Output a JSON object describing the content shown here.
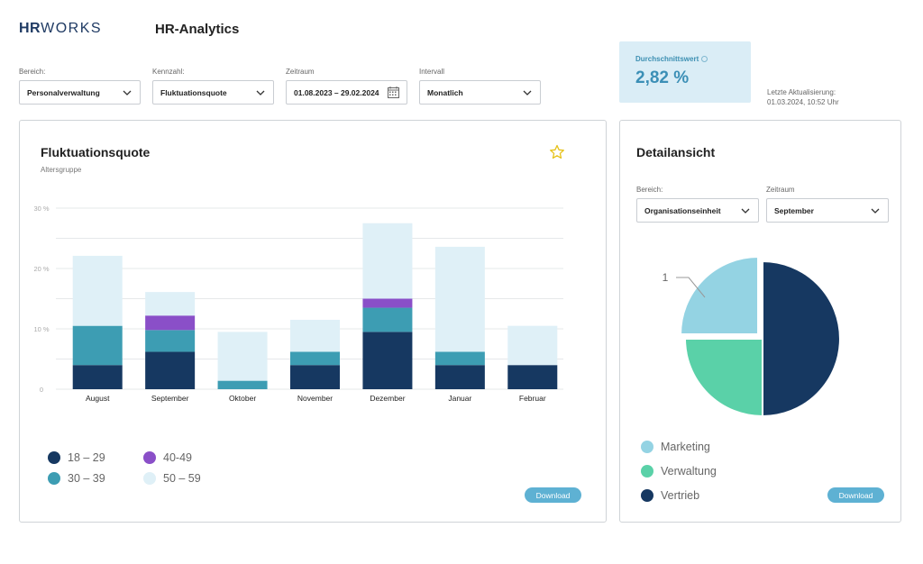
{
  "header": {
    "logo_hr": "HR",
    "logo_works": "WORKS",
    "title": "HR-Analytics"
  },
  "filters": {
    "bereich": {
      "label": "Bereich:",
      "value": "Personalverwaltung"
    },
    "kennzahl": {
      "label": "Kennzahl:",
      "value": "Fluktuationsquote"
    },
    "zeitraum": {
      "label": "Zeitraum",
      "value": "01.08.2023 – 29.02.2024"
    },
    "intervall": {
      "label": "Intervall",
      "value": "Monatlich"
    }
  },
  "kpi": {
    "label": "Durchschnittswert",
    "value": "2,82 %"
  },
  "updated": {
    "line1": "Letzte Aktualisierung:",
    "line2": "01.03.2024, 10:52 Uhr"
  },
  "main_card": {
    "title": "Fluktuationsquote",
    "subtitle": "Altersgruppe",
    "download": "Download"
  },
  "detail_card": {
    "title": "Detailansicht",
    "bereich": {
      "label": "Bereich:",
      "value": "Organisationseinheit"
    },
    "zeitraum": {
      "label": "Zeitraum",
      "value": "September"
    },
    "download": "Download"
  },
  "colors": {
    "c18_29": "#163861",
    "c30_39": "#3d9db3",
    "c40_49": "#8a4fc8",
    "c50_59": "#dff0f7",
    "marketing": "#94d3e3",
    "verwaltung": "#5ad1a8",
    "vertrieb": "#163861"
  },
  "chart_data": [
    {
      "type": "bar",
      "stacked": true,
      "categories": [
        "August",
        "September",
        "Oktober",
        "November",
        "Dezember",
        "Januar",
        "Februar"
      ],
      "series": [
        {
          "name": "18 – 29",
          "values": [
            4,
            6.2,
            0,
            4,
            9.5,
            4,
            4
          ]
        },
        {
          "name": "30 – 39",
          "values": [
            6.5,
            3.6,
            1.4,
            2.2,
            4,
            2.2,
            0
          ]
        },
        {
          "name": "40-49",
          "values": [
            0,
            2.4,
            0,
            0,
            1.5,
            0,
            0
          ]
        },
        {
          "name": "50 – 59",
          "values": [
            11.6,
            3.9,
            8.1,
            5.3,
            12.5,
            17.4,
            6.5
          ]
        }
      ],
      "yticks": [
        "0",
        "10 %",
        "20 %",
        "30 %"
      ],
      "ylim": [
        0,
        30
      ],
      "legend_position": "bottom-left"
    },
    {
      "type": "pie",
      "labels": [
        "Marketing",
        "Verwaltung",
        "Vertrieb"
      ],
      "values": [
        1,
        1,
        2
      ],
      "annotation": "1",
      "legend_position": "bottom-left"
    }
  ]
}
